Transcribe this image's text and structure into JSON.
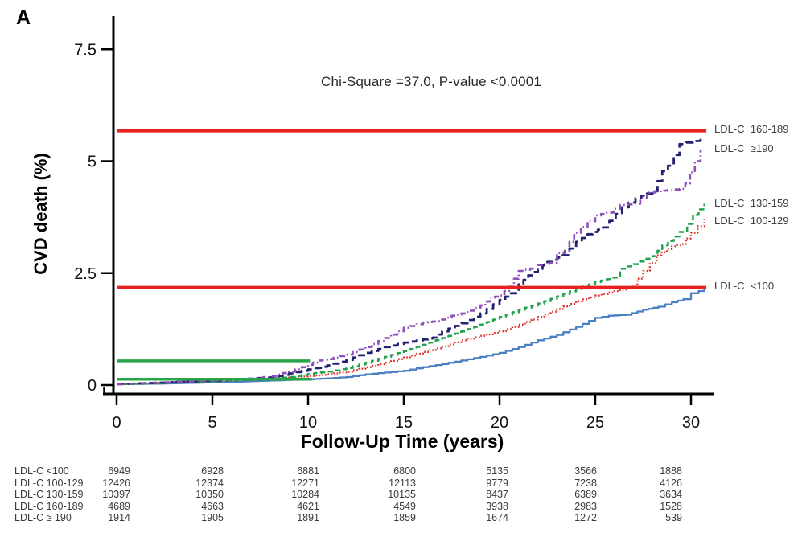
{
  "panel_label": "A",
  "chart_data": {
    "type": "line",
    "title": "",
    "annotation": "Chi-Square =37.0, P-value <0.0001",
    "xlabel": "Follow-Up Time (years)",
    "ylabel": "CVD death (%)",
    "xlim": [
      0,
      31.3
    ],
    "ylim": [
      0,
      8.2
    ],
    "grid": false,
    "legend_position": "right-of-plot-end-labels",
    "x_axis": {
      "ticks": [
        0,
        5,
        10,
        15,
        20,
        25,
        30
      ]
    },
    "y_axis": {
      "ticks": [
        {
          "value": 0,
          "label": "0"
        },
        {
          "value": 2.5,
          "label": "2.5"
        },
        {
          "value": 5,
          "label": "5"
        },
        {
          "value": 7.5,
          "label": "7.5"
        }
      ]
    },
    "series": [
      {
        "id": "ldl-lt-100",
        "name": "LDL-C <100",
        "right_label": "LDL-C  <100",
        "color": "#4a7ec2",
        "dash": "",
        "stroke_width": 2.3,
        "label_y_pct": 2.21,
        "points": [
          [
            0,
            0.02
          ],
          [
            2,
            0.03
          ],
          [
            4,
            0.05
          ],
          [
            6,
            0.07
          ],
          [
            8,
            0.1
          ],
          [
            10,
            0.13
          ],
          [
            11,
            0.15
          ],
          [
            12,
            0.18
          ],
          [
            13,
            0.24
          ],
          [
            14,
            0.28
          ],
          [
            15,
            0.32
          ],
          [
            16,
            0.4
          ],
          [
            17,
            0.47
          ],
          [
            18,
            0.55
          ],
          [
            19,
            0.63
          ],
          [
            20,
            0.72
          ],
          [
            21,
            0.85
          ],
          [
            22,
            1.0
          ],
          [
            23,
            1.12
          ],
          [
            24,
            1.3
          ],
          [
            25,
            1.5
          ],
          [
            25.7,
            1.55
          ],
          [
            26.6,
            1.57
          ],
          [
            27.5,
            1.68
          ],
          [
            28.3,
            1.75
          ],
          [
            29,
            1.85
          ],
          [
            29.6,
            1.92
          ],
          [
            30,
            2.05
          ],
          [
            30.4,
            2.1
          ],
          [
            30.7,
            2.18
          ]
        ]
      },
      {
        "id": "ldl-100-129",
        "name": "LDL-C 100-129",
        "right_label": "LDL-C  100-129",
        "color": "#df2b24",
        "dash": "1.7 2.4",
        "stroke_width": 2.3,
        "label_y_pct": 3.66,
        "points": [
          [
            0,
            0.02
          ],
          [
            2,
            0.04
          ],
          [
            4,
            0.07
          ],
          [
            5,
            0.1
          ],
          [
            6,
            0.11
          ],
          [
            7,
            0.12
          ],
          [
            8,
            0.14
          ],
          [
            9,
            0.17
          ],
          [
            10,
            0.2
          ],
          [
            11,
            0.24
          ],
          [
            12,
            0.3
          ],
          [
            13,
            0.4
          ],
          [
            14,
            0.5
          ],
          [
            15,
            0.62
          ],
          [
            16,
            0.74
          ],
          [
            17,
            0.86
          ],
          [
            18,
            1.0
          ],
          [
            19,
            1.1
          ],
          [
            20,
            1.2
          ],
          [
            21,
            1.35
          ],
          [
            22,
            1.52
          ],
          [
            23,
            1.7
          ],
          [
            24,
            1.87
          ],
          [
            25,
            2.0
          ],
          [
            26,
            2.1
          ],
          [
            26.9,
            2.2
          ],
          [
            27.5,
            2.55
          ],
          [
            28.2,
            2.9
          ],
          [
            29,
            3.1
          ],
          [
            29.5,
            3.15
          ],
          [
            30,
            3.4
          ],
          [
            30.7,
            3.7
          ]
        ]
      },
      {
        "id": "ldl-130-159",
        "name": "LDL-C 130-159",
        "right_label": "LDL-C  130-159",
        "color": "#23a24c",
        "dash": "6.5 4.2",
        "stroke_width": 2.5,
        "label_y_pct": 4.06,
        "points": [
          [
            0,
            0.02
          ],
          [
            2,
            0.04
          ],
          [
            4,
            0.07
          ],
          [
            6,
            0.1
          ],
          [
            8,
            0.14
          ],
          [
            9,
            0.18
          ],
          [
            10,
            0.25
          ],
          [
            11,
            0.3
          ],
          [
            12,
            0.38
          ],
          [
            13,
            0.5
          ],
          [
            14,
            0.63
          ],
          [
            15,
            0.76
          ],
          [
            16,
            0.9
          ],
          [
            17,
            1.05
          ],
          [
            18,
            1.2
          ],
          [
            19,
            1.35
          ],
          [
            20,
            1.52
          ],
          [
            21,
            1.68
          ],
          [
            22,
            1.82
          ],
          [
            23,
            1.98
          ],
          [
            24,
            2.15
          ],
          [
            25,
            2.3
          ],
          [
            25.9,
            2.4
          ],
          [
            26.3,
            2.6
          ],
          [
            27,
            2.7
          ],
          [
            28,
            2.88
          ],
          [
            28.5,
            3.12
          ],
          [
            29.4,
            3.42
          ],
          [
            29.8,
            3.6
          ],
          [
            30.1,
            3.8
          ],
          [
            30.7,
            4.05
          ]
        ]
      },
      {
        "id": "ldl-160-189",
        "name": "LDL-C 160-189",
        "right_label": "LDL-C  160-189",
        "color": "#232270",
        "dash": "9 5",
        "stroke_width": 2.8,
        "label_y_pct": 5.71,
        "points": [
          [
            0,
            0.02
          ],
          [
            2,
            0.05
          ],
          [
            4,
            0.08
          ],
          [
            6,
            0.12
          ],
          [
            8,
            0.17
          ],
          [
            9,
            0.26
          ],
          [
            10,
            0.35
          ],
          [
            11,
            0.44
          ],
          [
            12,
            0.56
          ],
          [
            13,
            0.72
          ],
          [
            14,
            0.85
          ],
          [
            15,
            0.95
          ],
          [
            16,
            1.02
          ],
          [
            16.5,
            1.06
          ],
          [
            17,
            1.2
          ],
          [
            18,
            1.38
          ],
          [
            19,
            1.6
          ],
          [
            20,
            1.9
          ],
          [
            20.6,
            2.05
          ],
          [
            21,
            2.25
          ],
          [
            21.5,
            2.45
          ],
          [
            22,
            2.6
          ],
          [
            22.5,
            2.75
          ],
          [
            23.3,
            2.9
          ],
          [
            24,
            3.2
          ],
          [
            24.6,
            3.37
          ],
          [
            25.4,
            3.52
          ],
          [
            26.4,
            3.97
          ],
          [
            27.1,
            4.18
          ],
          [
            28,
            4.33
          ],
          [
            28.5,
            4.78
          ],
          [
            28.8,
            4.9
          ],
          [
            29.4,
            5.38
          ],
          [
            30.1,
            5.45
          ],
          [
            30.5,
            5.55
          ]
        ]
      },
      {
        "id": "ldl-ge-190",
        "name": "LDL-C ≥190",
        "right_label": "LDL-C  ≥190",
        "color": "#8e4fba",
        "dash": "7 3.5 1.6 3.5",
        "stroke_width": 2.6,
        "label_y_pct": 5.28,
        "points": [
          [
            0,
            0.02
          ],
          [
            2,
            0.05
          ],
          [
            4,
            0.09
          ],
          [
            6,
            0.12
          ],
          [
            7,
            0.14
          ],
          [
            8,
            0.2
          ],
          [
            9,
            0.3
          ],
          [
            10,
            0.45
          ],
          [
            10.5,
            0.55
          ],
          [
            11,
            0.58
          ],
          [
            12,
            0.68
          ],
          [
            13,
            0.85
          ],
          [
            14,
            1.05
          ],
          [
            15,
            1.28
          ],
          [
            16,
            1.4
          ],
          [
            16.5,
            1.42
          ],
          [
            17.5,
            1.55
          ],
          [
            18,
            1.6
          ],
          [
            19,
            1.78
          ],
          [
            19.5,
            1.95
          ],
          [
            20,
            2.0
          ],
          [
            20.5,
            2.2
          ],
          [
            21,
            2.55
          ],
          [
            21.6,
            2.6
          ],
          [
            22,
            2.68
          ],
          [
            22.6,
            2.73
          ],
          [
            23,
            2.95
          ],
          [
            23.4,
            3.0
          ],
          [
            23.9,
            3.4
          ],
          [
            24.6,
            3.66
          ],
          [
            25,
            3.79
          ],
          [
            25.6,
            3.85
          ],
          [
            26.3,
            4.02
          ],
          [
            27,
            4.05
          ],
          [
            27.7,
            4.3
          ],
          [
            28.1,
            4.33
          ],
          [
            29.4,
            4.38
          ],
          [
            29.7,
            4.5
          ],
          [
            30.2,
            5.0
          ],
          [
            30.5,
            5.25
          ]
        ]
      }
    ],
    "ref_lines": [
      {
        "color": "#e8201f",
        "y_pct": 5.68,
        "x_start": 0,
        "x_end": 30.8,
        "stroke_width": 4
      },
      {
        "color": "#e8201f",
        "y_pct": 2.18,
        "x_start": 0,
        "x_end": 30.8,
        "stroke_width": 4
      },
      {
        "color": "#29a449",
        "y_pct": 0.54,
        "x_start": 0,
        "x_end": 10.1,
        "stroke_width": 3.5
      },
      {
        "color": "#29a449",
        "y_pct": 0.13,
        "x_start": 0,
        "x_end": 10.2,
        "stroke_width": 3.5
      }
    ]
  },
  "at_risk_table": {
    "times": [
      0,
      5,
      10,
      15,
      20,
      25,
      30
    ],
    "rows": [
      {
        "label": "LDL-C <100",
        "counts": [
          "6949",
          "6928",
          "6881",
          "6800",
          "5135",
          "3566",
          "1888"
        ]
      },
      {
        "label": "LDL-C 100-129",
        "counts": [
          "12426",
          "12374",
          "12271",
          "12113",
          "9779",
          "7238",
          "4126"
        ]
      },
      {
        "label": "LDL-C 130-159",
        "counts": [
          "10397",
          "10350",
          "10284",
          "10135",
          "8437",
          "6389",
          "3634"
        ]
      },
      {
        "label": "LDL-C 160-189",
        "counts": [
          "4689",
          "4663",
          "4621",
          "4549",
          "3938",
          "2983",
          "1528"
        ]
      },
      {
        "label": "LDL-C ≥ 190",
        "counts": [
          "1914",
          "1905",
          "1891",
          "1859",
          "1674",
          "1272",
          "539"
        ]
      }
    ]
  }
}
